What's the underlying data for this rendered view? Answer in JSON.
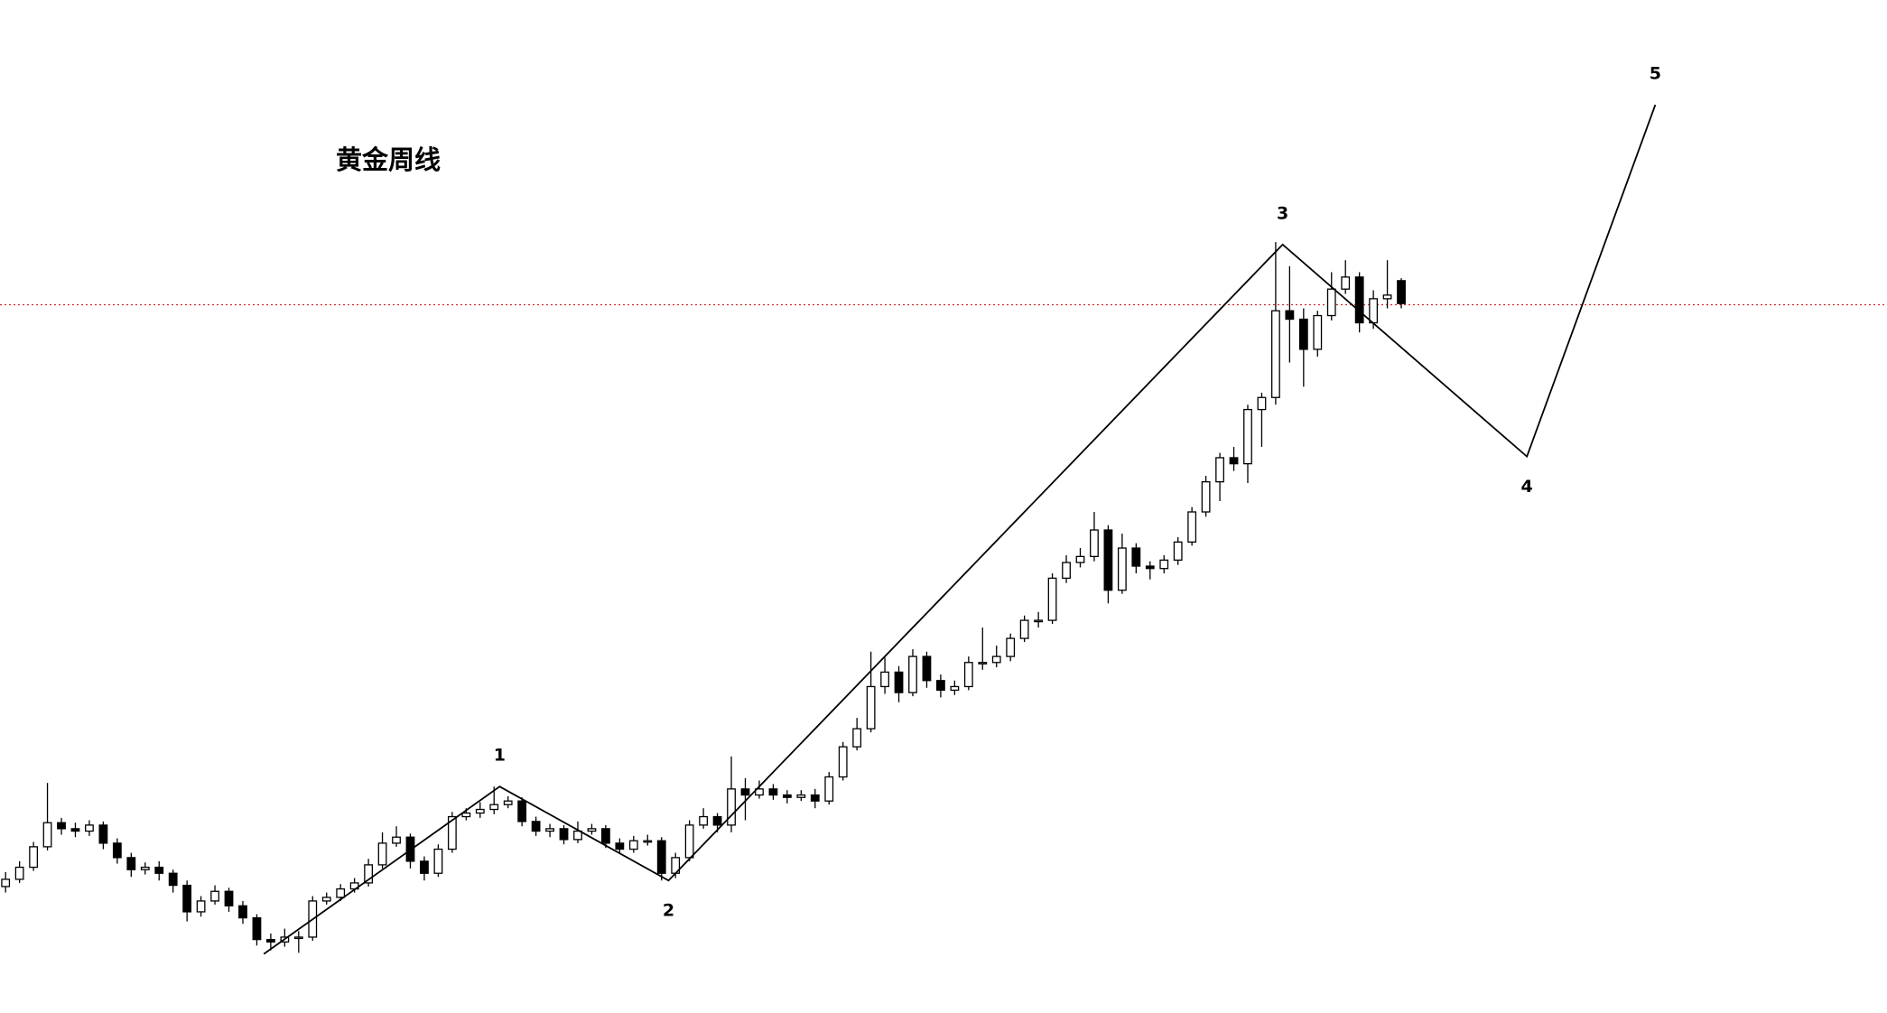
{
  "chart_data": {
    "type": "candlestick",
    "title": "黄金周线",
    "up_color": "#ffffff",
    "down_color": "#000000",
    "xlim": [
      -0.4,
      134.8
    ],
    "ylim": [
      0,
      841
    ],
    "open": [
      105,
      111,
      121,
      138,
      158,
      153,
      151,
      156,
      141,
      129,
      119,
      121,
      116,
      106,
      84,
      93,
      101,
      89,
      79,
      61,
      59,
      63,
      63,
      93,
      96,
      103,
      108,
      123,
      141,
      146,
      126,
      116,
      136,
      163,
      166,
      169,
      173,
      176,
      159,
      151,
      153,
      144,
      151,
      153,
      141,
      136,
      143,
      143,
      116,
      129,
      156,
      163,
      156,
      186,
      181,
      186,
      181,
      179,
      181,
      176,
      196,
      221,
      236,
      271,
      283,
      266,
      296,
      276,
      268,
      271,
      291,
      291,
      296,
      311,
      326,
      326,
      361,
      374,
      379,
      401,
      351,
      386,
      371,
      369,
      376,
      391,
      416,
      441,
      461,
      456,
      501,
      511,
      583,
      576,
      551,
      579,
      601,
      611,
      573,
      593,
      608
    ],
    "high": [
      117,
      126,
      142,
      191,
      162,
      158,
      160,
      159,
      145,
      133,
      125,
      126,
      119,
      110,
      97,
      106,
      104,
      93,
      82,
      66,
      70,
      68,
      97,
      100,
      107,
      112,
      128,
      150,
      155,
      149,
      130,
      140,
      167,
      170,
      175,
      188,
      180,
      179,
      163,
      157,
      156,
      159,
      157,
      156,
      145,
      147,
      148,
      146,
      133,
      160,
      170,
      166,
      213,
      195,
      193,
      190,
      185,
      185,
      186,
      200,
      225,
      245,
      300,
      295,
      288,
      302,
      300,
      281,
      276,
      296,
      320,
      305,
      315,
      330,
      333,
      365,
      380,
      386,
      416,
      405,
      398,
      390,
      375,
      380,
      395,
      420,
      446,
      465,
      470,
      505,
      515,
      640,
      620,
      585,
      583,
      615,
      625,
      615,
      600,
      625,
      610
    ],
    "low": [
      100,
      108,
      118,
      135,
      148,
      146,
      147,
      136,
      124,
      113,
      115,
      110,
      100,
      76,
      80,
      90,
      84,
      74,
      56,
      52,
      55,
      50,
      60,
      90,
      93,
      100,
      105,
      120,
      138,
      120,
      110,
      113,
      133,
      160,
      162,
      165,
      170,
      155,
      147,
      146,
      140,
      141,
      148,
      137,
      132,
      133,
      139,
      110,
      112,
      126,
      153,
      150,
      150,
      160,
      178,
      177,
      174,
      176,
      170,
      173,
      193,
      218,
      233,
      265,
      258,
      263,
      270,
      262,
      264,
      268,
      285,
      287,
      292,
      308,
      320,
      323,
      357,
      370,
      375,
      340,
      348,
      365,
      360,
      365,
      372,
      388,
      412,
      425,
      450,
      440,
      470,
      505,
      540,
      520,
      545,
      575,
      597,
      565,
      568,
      585,
      585
    ],
    "close": [
      111,
      121,
      138,
      158,
      153,
      151,
      156,
      141,
      129,
      119,
      121,
      116,
      106,
      84,
      93,
      101,
      89,
      79,
      61,
      59,
      63,
      63,
      93,
      96,
      103,
      108,
      123,
      141,
      146,
      126,
      116,
      136,
      163,
      166,
      169,
      173,
      176,
      159,
      151,
      153,
      144,
      151,
      153,
      141,
      136,
      143,
      143,
      116,
      129,
      156,
      163,
      156,
      186,
      181,
      186,
      181,
      179,
      181,
      176,
      196,
      221,
      236,
      271,
      283,
      266,
      296,
      276,
      268,
      271,
      291,
      291,
      296,
      311,
      326,
      326,
      361,
      374,
      379,
      401,
      351,
      386,
      371,
      369,
      376,
      391,
      416,
      441,
      461,
      456,
      501,
      511,
      583,
      576,
      551,
      579,
      601,
      611,
      573,
      593,
      596,
      589
    ],
    "waves": {
      "x": [
        18.5,
        35.4,
        47.5,
        91.5,
        109.0,
        118.2
      ],
      "values": [
        49,
        188,
        110,
        638,
        462,
        754
      ],
      "labels": [
        null,
        "1",
        "2",
        "3",
        "4",
        "5"
      ],
      "color": "#000000"
    },
    "reference_line": {
      "value": 588,
      "color": "#d62728"
    }
  }
}
